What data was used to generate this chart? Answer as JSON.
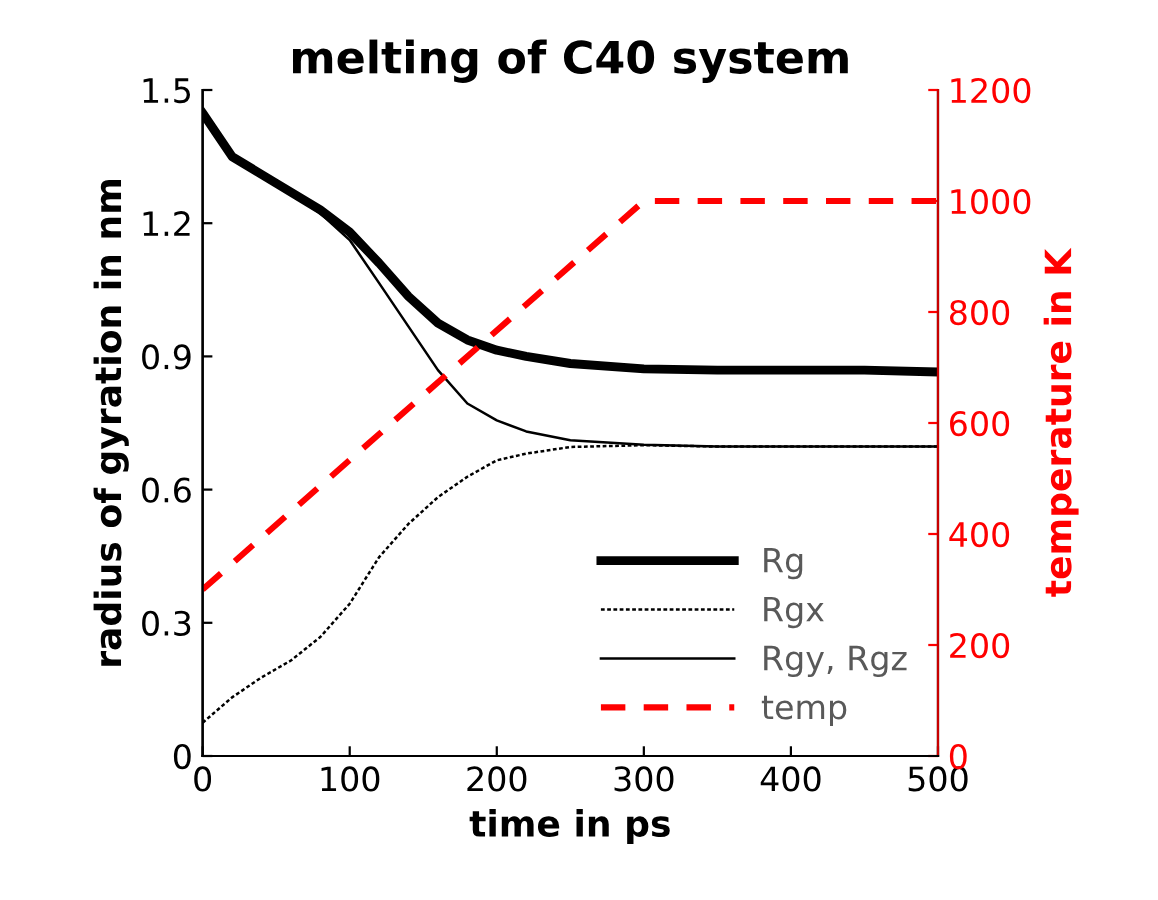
{
  "chart_data": {
    "type": "line",
    "title": "melting of C40 system",
    "xlabel": "time in ps",
    "ylabel": "radius of gyration in nm",
    "y2label": "temperature in K",
    "x": [
      0,
      20,
      50,
      80,
      100,
      120,
      140,
      160,
      180,
      200,
      220,
      250,
      300,
      350,
      400,
      450,
      500
    ],
    "series": [
      {
        "name": "Rg",
        "color": "#000000",
        "line_style": "solid",
        "values": [
          1.448,
          1.35,
          1.29,
          1.23,
          1.18,
          1.11,
          1.035,
          0.975,
          0.937,
          0.914,
          0.9,
          0.884,
          0.872,
          0.869,
          0.869,
          0.869,
          0.865
        ]
      },
      {
        "name": "Rgx",
        "color": "#000000",
        "line_style": "dotted",
        "x": [
          0,
          20,
          40,
          60,
          80,
          100,
          120,
          140,
          160,
          180,
          200,
          220,
          250,
          300,
          350,
          400,
          450,
          500
        ],
        "values": [
          0.075,
          0.132,
          0.177,
          0.215,
          0.268,
          0.343,
          0.448,
          0.523,
          0.583,
          0.629,
          0.666,
          0.681,
          0.696,
          0.7,
          0.697,
          0.697,
          0.697,
          0.697
        ]
      },
      {
        "name": "Rgy, Rgz",
        "color": "#000000",
        "line_style": "solid",
        "values": [
          1.448,
          1.35,
          1.29,
          1.222,
          1.162,
          1.065,
          0.967,
          0.869,
          0.794,
          0.756,
          0.731,
          0.711,
          0.701,
          0.697,
          0.697,
          0.697,
          0.697
        ]
      },
      {
        "name": "temp",
        "color": "#ff0000",
        "line_style": "dashed",
        "axis": "y2",
        "x": [
          0,
          300,
          500
        ],
        "values": [
          300,
          1000,
          1000
        ]
      }
    ],
    "xlim": [
      0,
      500
    ],
    "xticks": [
      0,
      100,
      200,
      300,
      400,
      500
    ],
    "ylim": [
      0,
      1.5
    ],
    "yticks": [
      0,
      0.3,
      0.6,
      0.9,
      1.2,
      1.5
    ],
    "y2lim": [
      0,
      1200
    ],
    "y2ticks": [
      0,
      200,
      400,
      600,
      800,
      1000,
      1200
    ],
    "grid": false,
    "legend": "bottom right",
    "marker": "none"
  }
}
